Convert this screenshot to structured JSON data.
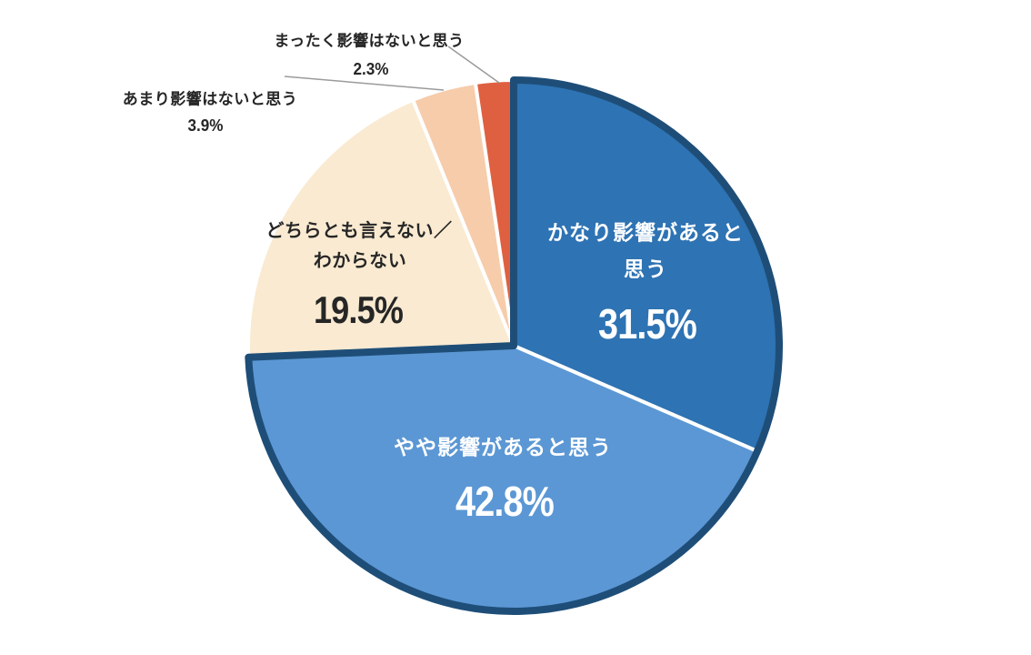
{
  "chart_data": {
    "type": "pie",
    "unit": "%",
    "direction": "clockwise",
    "start_angle_deg": 0,
    "background_color": "#FFFFFF",
    "separator_color": "#FFFFFF",
    "blue_group_outline_color": "#1E4E78",
    "leader_line_color": "#9B9B9B",
    "slices": [
      {
        "label": "かなり影響があると思う",
        "label_lines": [
          "かなり影響があると",
          "思う"
        ],
        "value": 31.5,
        "pct": "31.5%",
        "color": "#2E73B3",
        "label_color": "#FFFFFF",
        "label_position": "inside"
      },
      {
        "label": "やや影響があると思う",
        "label_lines": [
          "やや影響があると思う"
        ],
        "value": 42.8,
        "pct": "42.8%",
        "color": "#5B97D4",
        "label_color": "#FFFFFF",
        "label_position": "inside"
      },
      {
        "label": "どちらとも言えない／わからない",
        "label_lines": [
          "どちらとも言えない／",
          "わからない"
        ],
        "value": 19.5,
        "pct": "19.5%",
        "color": "#F9EAD1",
        "label_color": "#262626",
        "label_position": "inside"
      },
      {
        "label": "あまり影響はないと思う",
        "label_lines": [
          "あまり影響はないと思う"
        ],
        "value": 3.9,
        "pct": "3.9%",
        "color": "#F6CCAB",
        "label_color": "#262626",
        "label_position": "outside"
      },
      {
        "label": "まったく影響はないと思う",
        "label_lines": [
          "まったく影響はないと思う"
        ],
        "value": 2.3,
        "pct": "2.3%",
        "color": "#DF6040",
        "label_color": "#262626",
        "label_position": "outside"
      }
    ]
  }
}
